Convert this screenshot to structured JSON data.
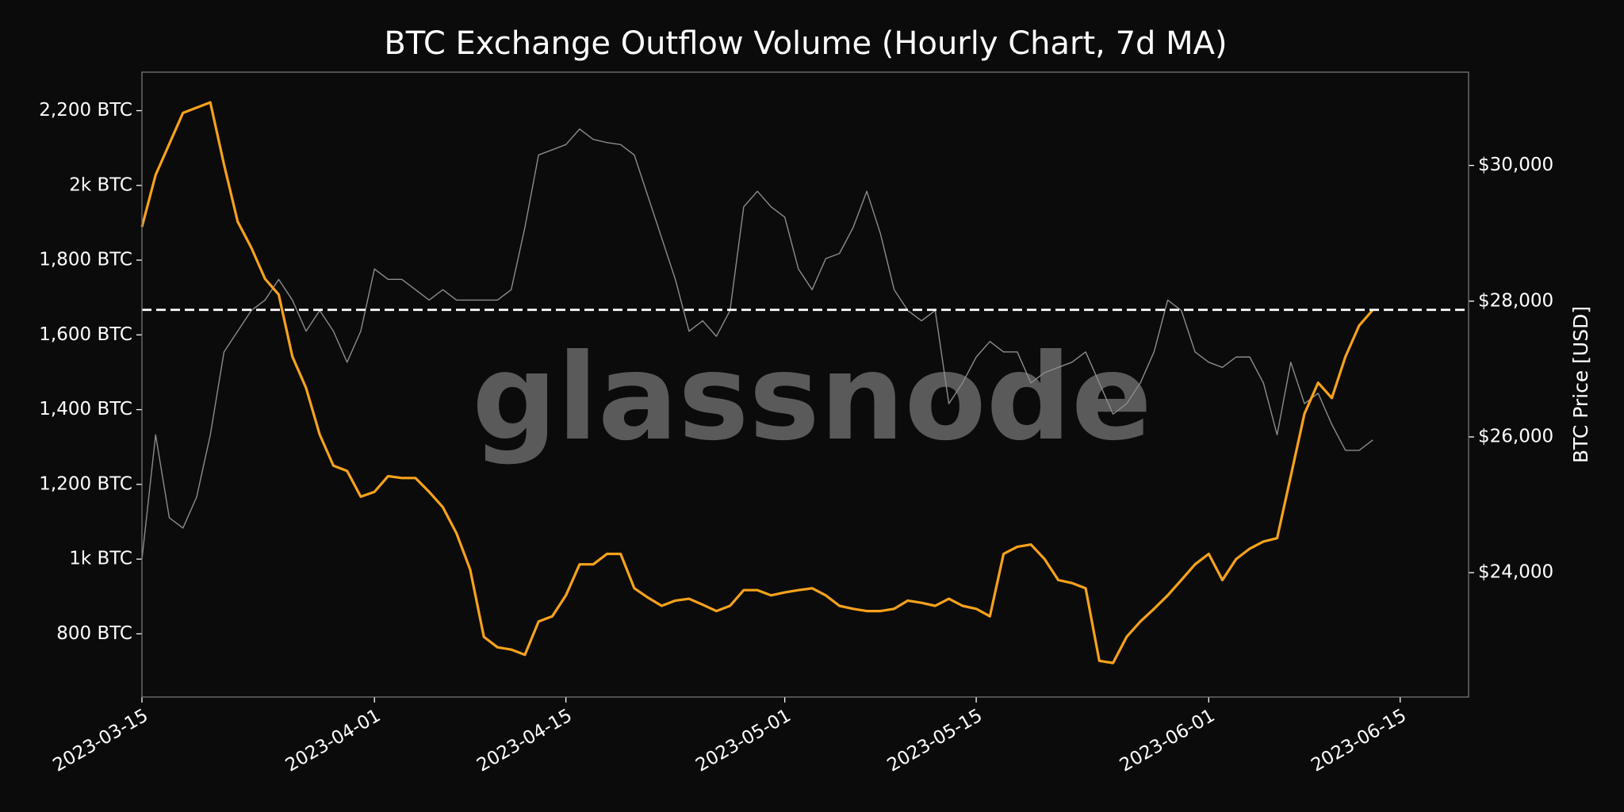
{
  "chart_data": {
    "type": "line",
    "title": "BTC Exchange Outflow Volume (Hourly Chart, 7d MA)",
    "y2label": "BTC Price [USD]",
    "watermark": "glassnode",
    "x": [
      "2023-03-15",
      "2023-03-16",
      "2023-03-17",
      "2023-03-18",
      "2023-03-19",
      "2023-03-20",
      "2023-03-21",
      "2023-03-22",
      "2023-03-23",
      "2023-03-24",
      "2023-03-25",
      "2023-03-26",
      "2023-03-27",
      "2023-03-28",
      "2023-03-29",
      "2023-03-30",
      "2023-03-31",
      "2023-04-01",
      "2023-04-02",
      "2023-04-03",
      "2023-04-04",
      "2023-04-05",
      "2023-04-06",
      "2023-04-07",
      "2023-04-08",
      "2023-04-09",
      "2023-04-10",
      "2023-04-11",
      "2023-04-12",
      "2023-04-13",
      "2023-04-14",
      "2023-04-15",
      "2023-04-16",
      "2023-04-17",
      "2023-04-18",
      "2023-04-19",
      "2023-04-20",
      "2023-04-21",
      "2023-04-22",
      "2023-04-23",
      "2023-04-24",
      "2023-04-25",
      "2023-04-26",
      "2023-04-27",
      "2023-04-28",
      "2023-04-29",
      "2023-04-30",
      "2023-05-01",
      "2023-05-02",
      "2023-05-03",
      "2023-05-04",
      "2023-05-05",
      "2023-05-06",
      "2023-05-07",
      "2023-05-08",
      "2023-05-09",
      "2023-05-10",
      "2023-05-11",
      "2023-05-12",
      "2023-05-13",
      "2023-05-14",
      "2023-05-15",
      "2023-05-16",
      "2023-05-17",
      "2023-05-18",
      "2023-05-19",
      "2023-05-20",
      "2023-05-21",
      "2023-05-22",
      "2023-05-23",
      "2023-05-24",
      "2023-05-25",
      "2023-05-26",
      "2023-05-27",
      "2023-05-28",
      "2023-05-29",
      "2023-05-30",
      "2023-05-31",
      "2023-06-01",
      "2023-06-02",
      "2023-06-03",
      "2023-06-04",
      "2023-06-05",
      "2023-06-06",
      "2023-06-07",
      "2023-06-08",
      "2023-06-09",
      "2023-06-10",
      "2023-06-11",
      "2023-06-12",
      "2023-06-13"
    ],
    "series": [
      {
        "color": "#8c8c8c",
        "axis": "y2",
        "values": [
          24198,
          26031,
          24809,
          24657,
          25115,
          26031,
          27252,
          27558,
          27863,
          28016,
          28321,
          28016,
          27558,
          27863,
          27558,
          27100,
          27558,
          28474,
          28321,
          28321,
          28169,
          28016,
          28169,
          28016,
          28016,
          28016,
          28016,
          28169,
          29085,
          30154,
          30230,
          30307,
          30536,
          30383,
          30337,
          30307,
          30154,
          29543,
          28932,
          28321,
          27558,
          27711,
          27482,
          27863,
          29390,
          29619,
          29390,
          29238,
          28474,
          28169,
          28627,
          28703,
          29085,
          29619,
          28993,
          28169,
          27863,
          27711,
          27863,
          26490,
          26795,
          27177,
          27406,
          27252,
          27252,
          26795,
          26948,
          27024,
          27100,
          27252,
          26795,
          26337,
          26490,
          26795,
          27252,
          28016,
          27863,
          27252,
          27100,
          27024,
          27177,
          27177,
          26795,
          26031,
          27100,
          26490,
          26643,
          26184,
          25802,
          25802,
          25955
        ]
      },
      {
        "color": "#f7a21b",
        "values": [
          1889,
          2028,
          2111,
          2194,
          2208,
          2222,
          2056,
          1903,
          1833,
          1750,
          1708,
          1542,
          1458,
          1333,
          1250,
          1236,
          1167,
          1180,
          1222,
          1217,
          1217,
          1180,
          1139,
          1069,
          972,
          792,
          764,
          758,
          744,
          833,
          847,
          903,
          986,
          986,
          1014,
          1014,
          922,
          897,
          875,
          889,
          894,
          878,
          861,
          875,
          917,
          917,
          903,
          911,
          917,
          922,
          903,
          875,
          867,
          861,
          861,
          867,
          889,
          883,
          875,
          894,
          875,
          867,
          847,
          1014,
          1033,
          1039,
          1000,
          944,
          936,
          922,
          728,
          722,
          792,
          833,
          867,
          903,
          944,
          986,
          1014,
          944,
          1000,
          1028,
          1047,
          1056,
          1222,
          1389,
          1472,
          1431,
          1542,
          1625,
          1667
        ]
      }
    ],
    "reference_line": {
      "value": 1667,
      "color": "#ffffff"
    },
    "xlim": [
      "2023-03-15",
      "2023-06-20"
    ],
    "xticks": [
      "2023-03-15",
      "2023-04-01",
      "2023-04-15",
      "2023-05-01",
      "2023-05-15",
      "2023-06-01",
      "2023-06-15"
    ],
    "ylim": [
      631,
      2303
    ],
    "yticks": [
      {
        "value": 800,
        "label": "800 BTC"
      },
      {
        "value": 1000,
        "label": "1k BTC"
      },
      {
        "value": 1200,
        "label": "1,200 BTC"
      },
      {
        "value": 1400,
        "label": "1,400 BTC"
      },
      {
        "value": 1600,
        "label": "1,600 BTC"
      },
      {
        "value": 1800,
        "label": "1,800 BTC"
      },
      {
        "value": 2000,
        "label": "2k BTC"
      },
      {
        "value": 2200,
        "label": "2,200 BTC"
      }
    ],
    "y2lim": [
      22168,
      31374
    ],
    "y2ticks": [
      {
        "value": 24000,
        "label": "$24,000"
      },
      {
        "value": 26000,
        "label": "$26,000"
      },
      {
        "value": 28000,
        "label": "$28,000"
      },
      {
        "value": 30000,
        "label": "$30,000"
      }
    ],
    "grid": false
  }
}
